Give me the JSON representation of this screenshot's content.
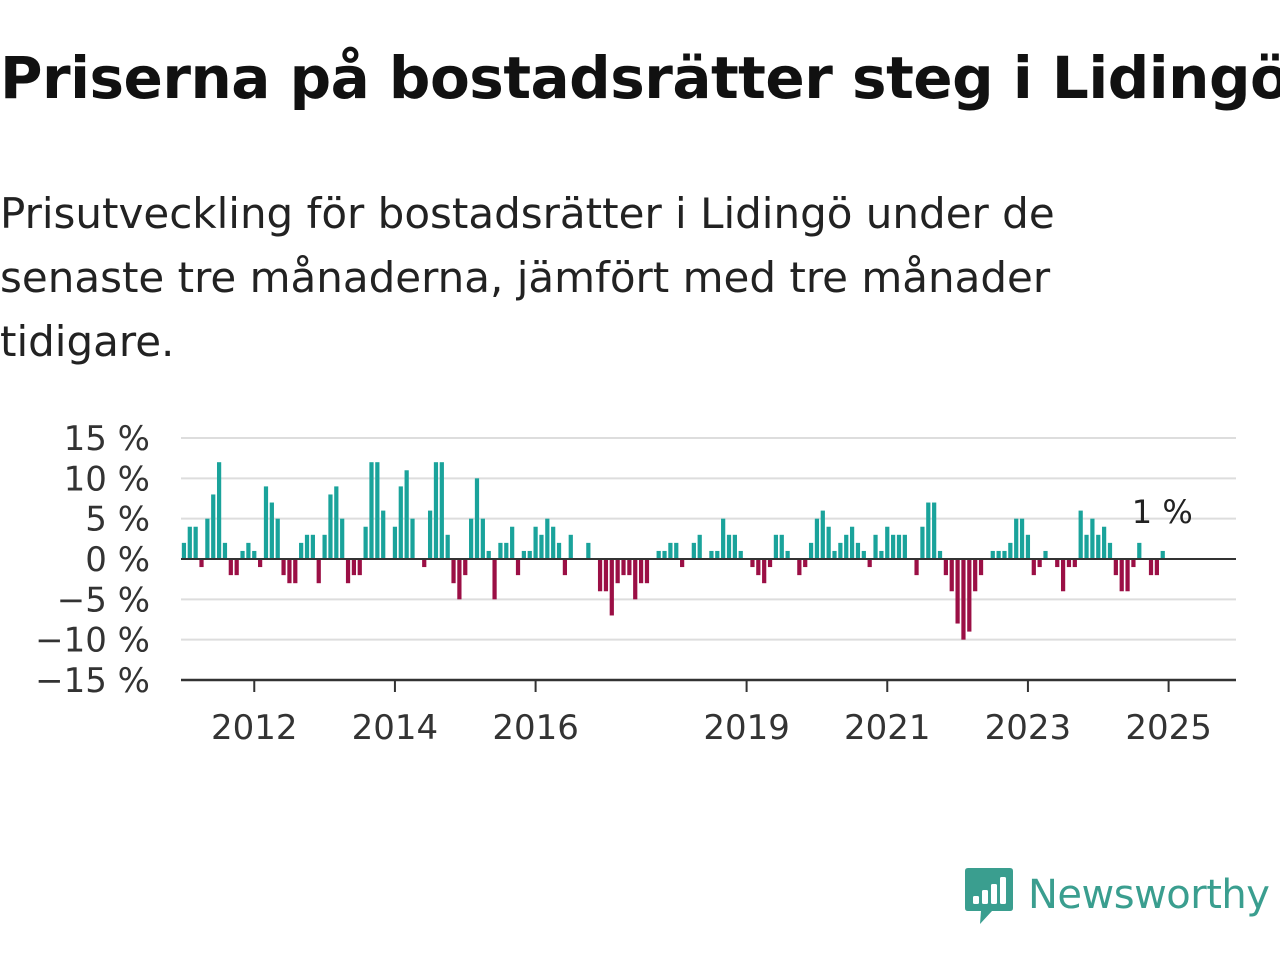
{
  "header": {
    "title": "Priserna på bostadsrätter steg i Lidingö",
    "subtitle": "Prisutveckling för bostadsrätter i Lidingö under de senaste tre månaderna, jämfört med tre månader tidigare."
  },
  "brand": {
    "name": "Newsworthy",
    "logo_icon": "newsworthy-logo-icon",
    "color": "#3a9e8f"
  },
  "colors": {
    "positive": "#1aa39b",
    "negative": "#9b0f45",
    "grid": "#dddddd",
    "axis": "#333333"
  },
  "chart_data": {
    "type": "bar",
    "title": "Priserna på bostadsrätter steg i Lidingö",
    "subtitle": "Prisutveckling för bostadsrätter i Lidingö under de senaste tre månaderna, jämfört med tre månader tidigare.",
    "x_start": "2011-01",
    "x_end": "2025-12",
    "frequency": "monthly",
    "ylim": [
      -15,
      15
    ],
    "yticks": [
      15,
      10,
      5,
      0,
      -5,
      -10,
      -15
    ],
    "ytick_labels": [
      "15 %",
      "10 %",
      "5 %",
      "0 %",
      "−5 %",
      "−10 %",
      "−15 %"
    ],
    "xticks": [
      "2012-01",
      "2014-01",
      "2016-01",
      "2019-01",
      "2021-01",
      "2023-01",
      "2025-01"
    ],
    "xtick_labels": [
      "2012",
      "2014",
      "2016",
      "2019",
      "2021",
      "2023",
      "2025"
    ],
    "grid": true,
    "last_label": "1 %",
    "series": [
      {
        "values": [
          2,
          4,
          4,
          -1,
          5,
          8,
          12,
          2,
          -2,
          -2,
          1,
          2,
          1,
          -1,
          9,
          7,
          5,
          -2,
          -3,
          -3,
          2,
          3,
          3,
          -3,
          3,
          8,
          9,
          5,
          -3,
          -2,
          -2,
          4,
          12,
          12,
          6,
          0,
          4,
          9,
          11,
          5,
          0,
          -1,
          6,
          12,
          12,
          3,
          -3,
          -5,
          -2,
          5,
          10,
          5,
          1,
          -5,
          2,
          2,
          4,
          -2,
          1,
          1,
          4,
          3,
          5,
          4,
          2,
          -2,
          3,
          0,
          0,
          2,
          0,
          -4,
          -4,
          -7,
          -3,
          -2,
          -2,
          -5,
          -3,
          -3,
          0,
          1,
          1,
          2,
          2,
          -1,
          0,
          2,
          3,
          0,
          1,
          1,
          5,
          3,
          3,
          1,
          0,
          -1,
          -2,
          -3,
          -1,
          3,
          3,
          1,
          0,
          -2,
          -1,
          2,
          5,
          6,
          4,
          1,
          2,
          3,
          4,
          2,
          1,
          -1,
          3,
          1,
          4,
          3,
          3,
          3,
          0,
          -2,
          4,
          7,
          7,
          1,
          -2,
          -4,
          -8,
          -10,
          -9,
          -4,
          -2,
          0,
          1,
          1,
          1,
          2,
          5,
          5,
          3,
          -2,
          -1,
          1,
          0,
          -1,
          -4,
          -1,
          -1,
          6,
          3,
          5,
          3,
          4,
          2,
          -2,
          -4,
          -4,
          -1,
          2,
          0,
          -2,
          -2,
          1
        ]
      }
    ]
  }
}
